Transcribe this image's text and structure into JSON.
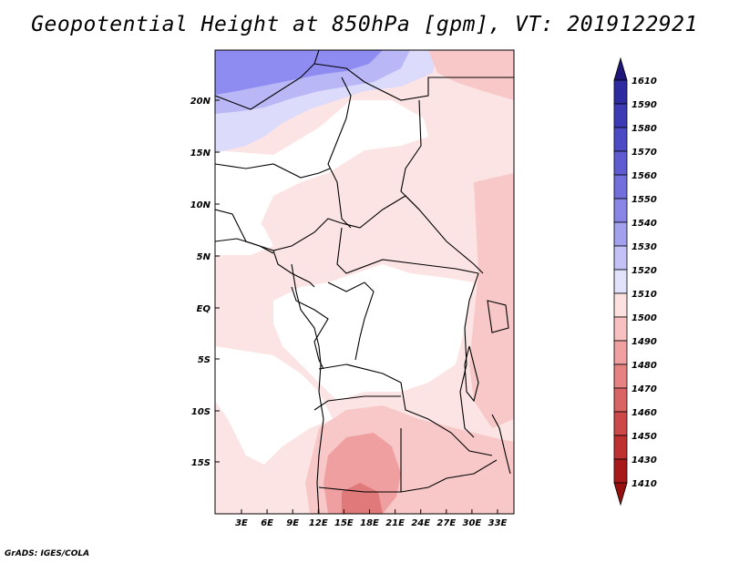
{
  "title": "Geopotential Height at 850hPa [gpm], VT: 2019122921",
  "credit": "GrADS: IGES/COLA",
  "map": {
    "lat_labels": [
      "20N",
      "15N",
      "10N",
      "5N",
      "EQ",
      "5S",
      "10S",
      "15S"
    ],
    "lon_labels": [
      "3E",
      "6E",
      "9E",
      "12E",
      "15E",
      "18E",
      "21E",
      "24E",
      "27E",
      "30E",
      "33E"
    ]
  },
  "colorbar": {
    "levels": [
      "1610",
      "1590",
      "1580",
      "1570",
      "1560",
      "1550",
      "1540",
      "1530",
      "1520",
      "1510",
      "1500",
      "1490",
      "1480",
      "1470",
      "1460",
      "1450",
      "1430",
      "1410"
    ],
    "colors": [
      "#1e1678",
      "#2e2aa0",
      "#3d3ab6",
      "#4c4ac4",
      "#5e5cd0",
      "#726fdc",
      "#8885e6",
      "#a3a1ee",
      "#c3c1f6",
      "#e2e1fb",
      "#fde0e0",
      "#f8c0c0",
      "#f0a0a0",
      "#e68282",
      "#da6464",
      "#cd4848",
      "#bf3030",
      "#a81a1a",
      "#961010"
    ]
  },
  "fill_colors": {
    "deep_blue": "#8e8cf0",
    "mid_blue": "#b9b7f6",
    "light_blue": "#dcdbfb",
    "white": "#ffffff",
    "pink_light": "#fde4e4",
    "pink_mid": "#f8c8c8",
    "pink_dark": "#ef9f9f",
    "red": "#e07a7a"
  }
}
